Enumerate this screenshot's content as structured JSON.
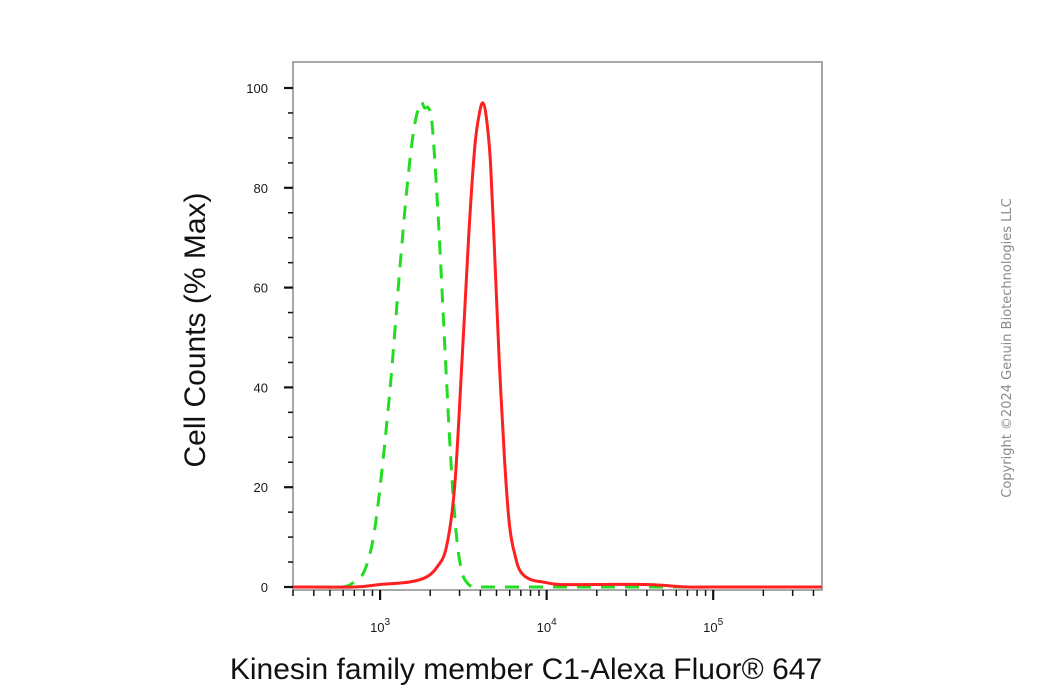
{
  "chart_data": {
    "type": "line",
    "title": "",
    "xlabel": "Kinesin family member C1-Alexa Fluor® 647",
    "ylabel": "Cell Counts (% Max)",
    "xscale": "log",
    "xlim": [
      300,
      450000
    ],
    "ylim": [
      0,
      100
    ],
    "yticks": [
      0,
      20,
      40,
      60,
      80,
      100
    ],
    "xticks": [
      {
        "value": 1000,
        "base": "10",
        "exp": "3"
      },
      {
        "value": 10000,
        "base": "10",
        "exp": "4"
      },
      {
        "value": 100000,
        "base": "10",
        "exp": "5"
      }
    ],
    "grid": false,
    "legend": "none",
    "series": [
      {
        "color": "#22dd22",
        "style": "dashed",
        "x": [
          300,
          450,
          600,
          700,
          800,
          900,
          1000,
          1150,
          1300,
          1450,
          1600,
          1750,
          1850,
          1950,
          2050,
          2200,
          2350,
          2500,
          2700,
          2900,
          3100,
          3300,
          3600,
          4000,
          5000,
          8000,
          20000,
          100000,
          450000
        ],
        "y": [
          0,
          0,
          0,
          1,
          3,
          9,
          20,
          40,
          62,
          80,
          92,
          97,
          96,
          96,
          93,
          78,
          60,
          42,
          22,
          9,
          3,
          1,
          0,
          0,
          0,
          0,
          0,
          0,
          0
        ]
      },
      {
        "color": "#ff2020",
        "style": "solid",
        "x": [
          300,
          700,
          1000,
          1500,
          1900,
          2200,
          2500,
          2800,
          3100,
          3400,
          3700,
          3950,
          4150,
          4350,
          4600,
          4900,
          5200,
          5600,
          6000,
          6500,
          7000,
          8000,
          9500,
          12000,
          20000,
          40000,
          70000,
          100000,
          450000
        ],
        "y": [
          0,
          0,
          0.5,
          1,
          2,
          4,
          8,
          20,
          45,
          70,
          88,
          95,
          97,
          94,
          85,
          65,
          45,
          25,
          12,
          6,
          3,
          1.5,
          1,
          0.5,
          0.5,
          0.5,
          0,
          0,
          0
        ]
      }
    ]
  },
  "copyright": "Copyright ©2024 Genuin Biotechnologies LLC"
}
